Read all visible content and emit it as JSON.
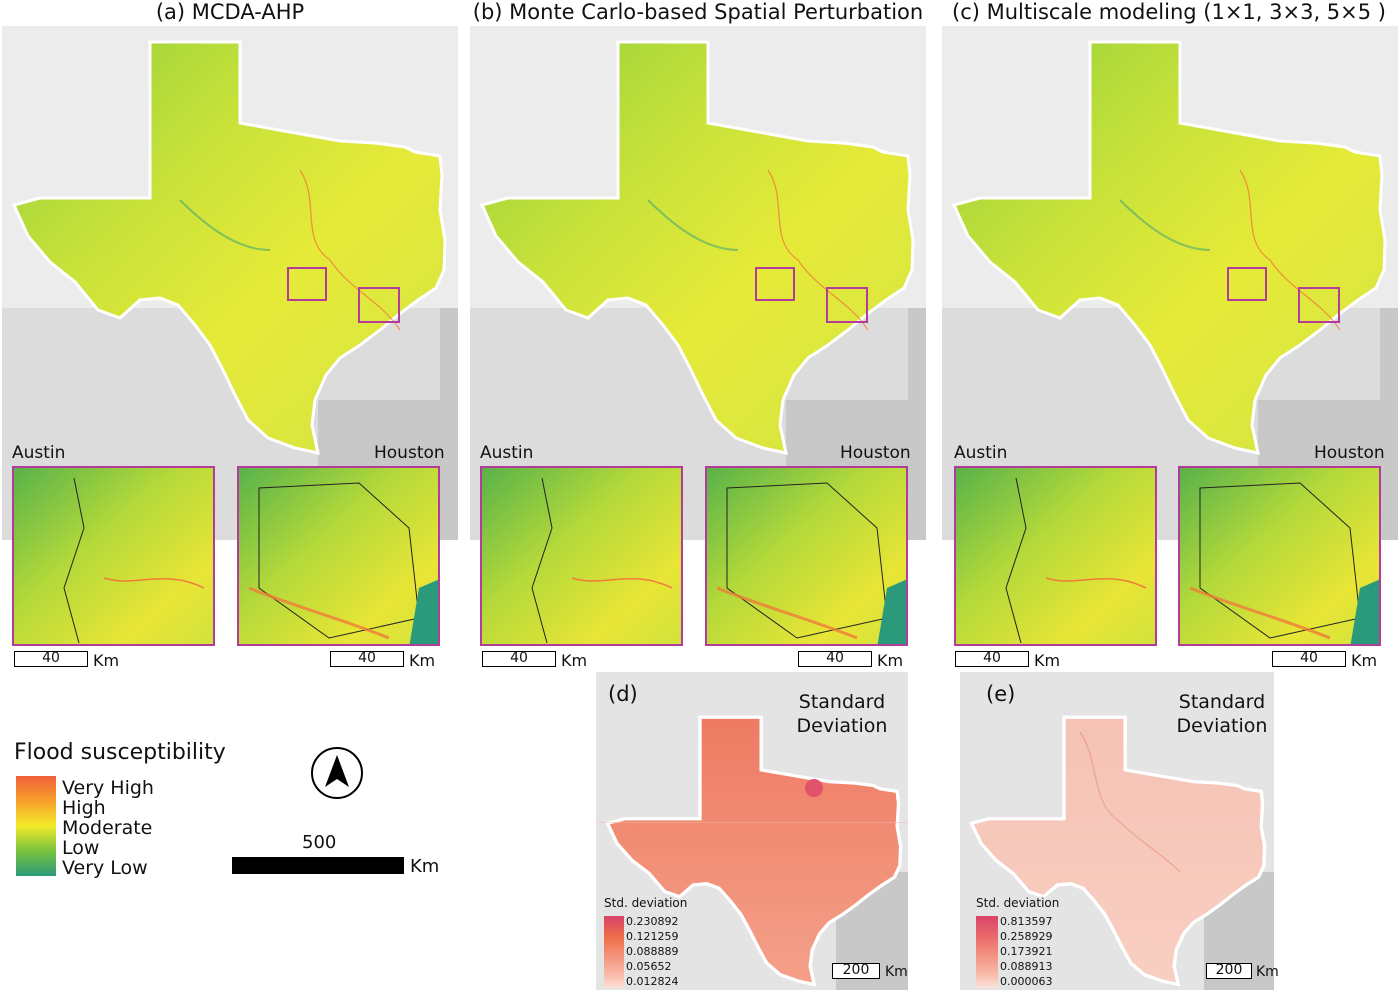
{
  "panels": [
    {
      "title": "(a) MCDA-AHP",
      "city_left": "Austin",
      "city_right": "Houston",
      "scale_left": "40",
      "scale_right": "40",
      "km": "Km"
    },
    {
      "title": "(b) Monte Carlo-based Spatial Perturbation",
      "city_left": "Austin",
      "city_right": "Houston",
      "scale_left": "40",
      "scale_right": "40",
      "km": "Km"
    },
    {
      "title": "(c) Multiscale modeling (1×1, 3×3, 5×5 )",
      "city_left": "Austin",
      "city_right": "Houston",
      "scale_left": "40",
      "scale_right": "40",
      "km": "Km"
    }
  ],
  "sd_panels": [
    {
      "label": "(d)",
      "title_line1": "Standard",
      "title_line2": "Deviation",
      "legend_title": "Std. deviation",
      "legend_values": [
        "0.230892",
        "0.121259",
        "0.088889",
        "0.05652",
        "0.012824"
      ],
      "legend_colors": [
        "#d9436a",
        "#ef6f4a",
        "#f4927a",
        "#f8b8a6",
        "#fbe0d6"
      ],
      "scale": "200",
      "km": "Km"
    },
    {
      "label": "(e)",
      "title_line1": "Standard",
      "title_line2": "Deviation",
      "legend_title": "Std. deviation",
      "legend_values": [
        "0.813597",
        "0.258929",
        "0.173921",
        "0.088913",
        "0.000063"
      ],
      "legend_colors": [
        "#d9436a",
        "#ea6c6c",
        "#f39382",
        "#f7b8a8",
        "#fbe3dc"
      ],
      "scale": "200",
      "km": "Km"
    }
  ],
  "legend": {
    "title": "Flood susceptibility",
    "items": [
      "Very High",
      "High",
      "Moderate",
      "Low",
      "Very Low"
    ],
    "colors": [
      "#f0603a",
      "#f7a02a",
      "#f2ea2a",
      "#79c23e",
      "#2a9a7a"
    ]
  },
  "north_arrow": {
    "icon": "north-arrow-icon"
  },
  "scalebar_main": {
    "value": "500",
    "unit": "Km"
  }
}
